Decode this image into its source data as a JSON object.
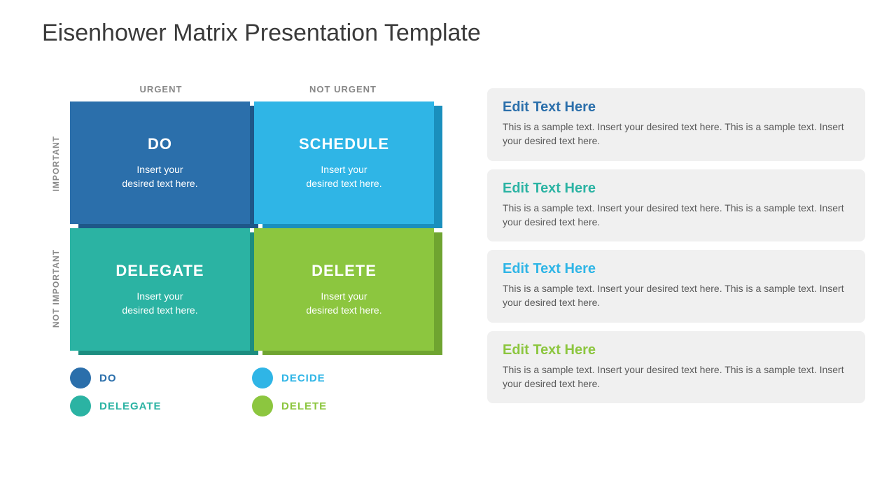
{
  "title": "Eisenhower Matrix Presentation Template",
  "matrix": {
    "col_headers": [
      "URGENT",
      "NOT URGENT"
    ],
    "row_headers": [
      "IMPORTANT",
      "NOT IMPORTANT"
    ],
    "quadrants": [
      {
        "title": "DO",
        "body": "Insert your\ndesired text here.",
        "face": "#2b6fab",
        "side": "#1e5788"
      },
      {
        "title": "SCHEDULE",
        "body": "Insert your\ndesired text here.",
        "face": "#2fb5e6",
        "side": "#1a8fbd"
      },
      {
        "title": "DELEGATE",
        "body": "Insert your\ndesired text here.",
        "face": "#2bb3a3",
        "side": "#1c8d80"
      },
      {
        "title": "DELETE",
        "body": "Insert your\ndesired text here.",
        "face": "#8cc63f",
        "side": "#6fa430"
      }
    ]
  },
  "legend": [
    {
      "label": "DO",
      "color": "#2b6fab"
    },
    {
      "label": "DECIDE",
      "color": "#2fb5e6"
    },
    {
      "label": "DELEGATE",
      "color": "#2bb3a3"
    },
    {
      "label": "DELETE",
      "color": "#8cc63f"
    }
  ],
  "cards": [
    {
      "title": "Edit Text Here",
      "title_color": "#2b6fab",
      "body": "This is a sample text. Insert your desired text here. This is a sample text. Insert your desired text here."
    },
    {
      "title": "Edit Text Here",
      "title_color": "#2bb3a3",
      "body": "This is a sample text. Insert your desired text here. This is a sample text. Insert your desired text here."
    },
    {
      "title": "Edit Text Here",
      "title_color": "#2fb5e6",
      "body": "This is a sample text. Insert your desired text here. This is a sample text. Insert your desired text here."
    },
    {
      "title": "Edit Text Here",
      "title_color": "#8cc63f",
      "body": "This is a sample text. Insert your desired text here. This is a sample text. Insert your desired text here."
    }
  ],
  "styling": {
    "background": "#ffffff",
    "title_color": "#3a3a3a",
    "title_fontsize": 34,
    "header_color": "#888888",
    "card_bg": "#f0f0f0",
    "card_body_color": "#5a5a5a"
  }
}
